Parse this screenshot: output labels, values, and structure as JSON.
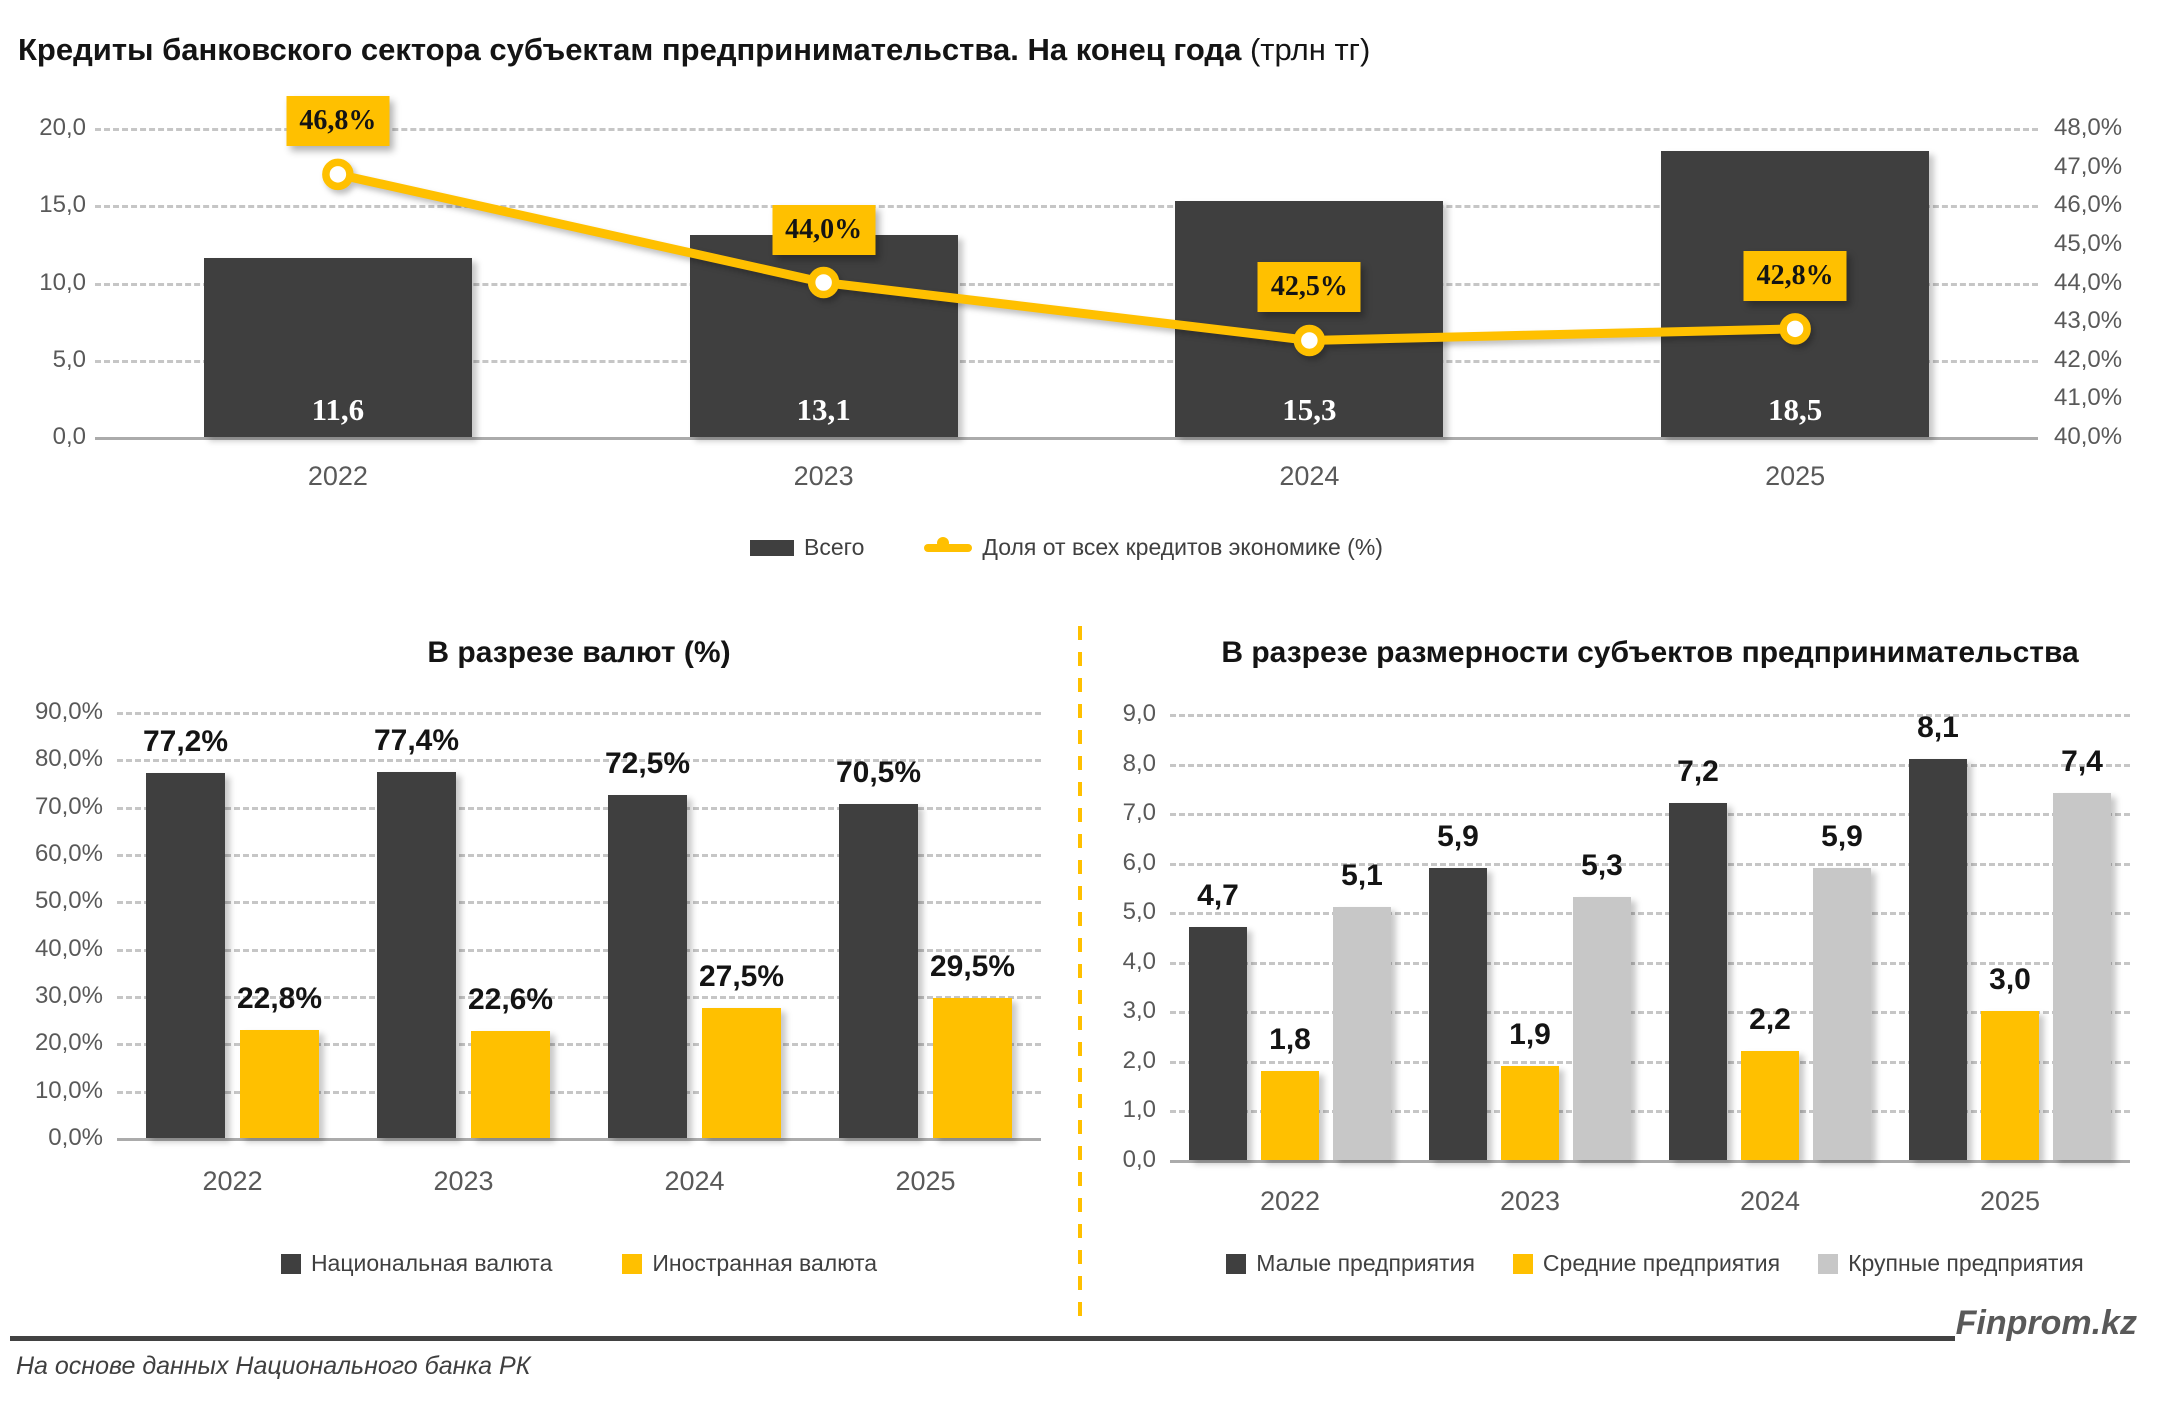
{
  "page": {
    "footer_source": "На основе данных Национального банка РК",
    "brand": "Finprom.kz"
  },
  "colors": {
    "dark": "#3F3F3F",
    "yellow": "#FFC000",
    "gray": "#C7C7C7",
    "axis_text": "#595959",
    "legend_text": "#404040"
  },
  "chart_data": [
    {
      "type": "bar-line-combo",
      "title_bold": "Кредиты банковского сектора субъектам предпринимательства. На конец года",
      "title_units": " (трлн тг)",
      "categories": [
        "2022",
        "2023",
        "2024",
        "2025"
      ],
      "series": [
        {
          "name": "Всего",
          "type": "bar",
          "color": "#3F3F3F",
          "values": [
            11.6,
            13.1,
            15.3,
            18.5
          ],
          "labels": [
            "11,6",
            "13,1",
            "15,3",
            "18,5"
          ]
        },
        {
          "name": "Доля от всех кредитов экономике (%)",
          "type": "line",
          "color": "#FFC000",
          "values": [
            46.8,
            44.0,
            42.5,
            42.8
          ],
          "labels": [
            "46,8%",
            "44,0%",
            "42,5%",
            "42,8%"
          ]
        }
      ],
      "left_axis": {
        "min": 0,
        "max": 20,
        "ticks": [
          "0,0",
          "5,0",
          "10,0",
          "15,0",
          "20,0"
        ]
      },
      "right_axis": {
        "min": 40,
        "max": 48,
        "ticks": [
          "40,0%",
          "41,0%",
          "42,0%",
          "43,0%",
          "44,0%",
          "45,0%",
          "46,0%",
          "47,0%",
          "48,0%"
        ]
      },
      "grid": "dashed",
      "legend_position": "bottom"
    },
    {
      "type": "bar",
      "title": "В разрезе валют (%)",
      "categories": [
        "2022",
        "2023",
        "2024",
        "2025"
      ],
      "series": [
        {
          "name": "Национальная валюта",
          "color": "#3F3F3F",
          "values": [
            77.2,
            77.4,
            72.5,
            70.5
          ],
          "labels": [
            "77,2%",
            "77,4%",
            "72,5%",
            "70,5%"
          ]
        },
        {
          "name": "Иностранная валюта",
          "color": "#FFC000",
          "values": [
            22.8,
            22.6,
            27.5,
            29.5
          ],
          "labels": [
            "22,8%",
            "22,6%",
            "27,5%",
            "29,5%"
          ]
        }
      ],
      "y_axis": {
        "min": 0,
        "max": 90,
        "ticks": [
          "0,0%",
          "10,0%",
          "20,0%",
          "30,0%",
          "40,0%",
          "50,0%",
          "60,0%",
          "70,0%",
          "80,0%",
          "90,0%"
        ]
      },
      "grid": "dashed",
      "legend_position": "bottom"
    },
    {
      "type": "bar",
      "title": "В разрезе размерности субъектов предпринимательства",
      "categories": [
        "2022",
        "2023",
        "2024",
        "2025"
      ],
      "series": [
        {
          "name": "Малые предприятия",
          "color": "#3F3F3F",
          "values": [
            4.7,
            5.9,
            7.2,
            8.1
          ],
          "labels": [
            "4,7",
            "5,9",
            "7,2",
            "8,1"
          ]
        },
        {
          "name": "Средние предприятия",
          "color": "#FFC000",
          "values": [
            1.8,
            1.9,
            2.2,
            3.0
          ],
          "labels": [
            "1,8",
            "1,9",
            "2,2",
            "3,0"
          ]
        },
        {
          "name": "Крупные предприятия",
          "color": "#C7C7C7",
          "values": [
            5.1,
            5.3,
            5.9,
            7.4
          ],
          "labels": [
            "5,1",
            "5,3",
            "5,9",
            "7,4"
          ]
        }
      ],
      "y_axis": {
        "min": 0,
        "max": 9,
        "ticks": [
          "0,0",
          "1,0",
          "2,0",
          "3,0",
          "4,0",
          "5,0",
          "6,0",
          "7,0",
          "8,0",
          "9,0"
        ]
      },
      "grid": "dashed",
      "legend_position": "bottom"
    }
  ]
}
